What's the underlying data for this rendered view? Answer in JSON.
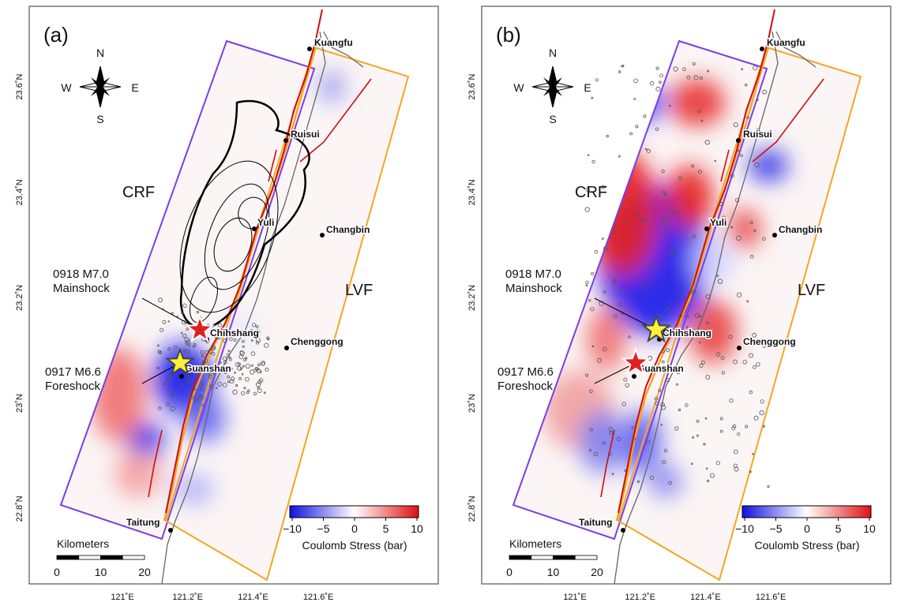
{
  "panels": [
    {
      "label": "(a)",
      "compass": {
        "n": "N",
        "s": "S",
        "w": "W",
        "e": "E"
      },
      "faults": [
        "CRF",
        "LVF"
      ],
      "towns": [
        "Kuangfu",
        "Ruisui",
        "Yuli",
        "Changbin",
        "Chihshang",
        "Chenggong",
        "Guanshan",
        "Taitung"
      ],
      "events": [
        {
          "line1": "0918 M7.0",
          "line2": "Mainshock"
        },
        {
          "line1": "0917 M6.6",
          "line2": "Foreshock"
        }
      ],
      "colorbar": {
        "ticks": [
          "−10",
          "−5",
          "0",
          "5",
          "10"
        ],
        "title": "Coulomb Stress (bar)"
      },
      "scalebar": {
        "title": "Kilometers",
        "ticks": [
          "0",
          "10",
          "20"
        ]
      },
      "lat_labels": [
        "23.6˚N",
        "23.4˚N",
        "23.2˚N",
        "23˚N",
        "22.8˚N"
      ],
      "lon_labels": [
        "121˚E",
        "121.2˚E",
        "121.4˚E",
        "121.6˚E"
      ]
    },
    {
      "label": "(b)",
      "compass": {
        "n": "N",
        "s": "S",
        "w": "W",
        "e": "E"
      },
      "faults": [
        "CRF",
        "LVF"
      ],
      "towns": [
        "Kuangfu",
        "Ruisui",
        "Yuli",
        "Changbin",
        "Chihshang",
        "Chenggong",
        "Guanshan",
        "Taitung"
      ],
      "events": [
        {
          "line1": "0918 M7.0",
          "line2": "Mainshock"
        },
        {
          "line1": "0917 M6.6",
          "line2": "Foreshock"
        }
      ],
      "colorbar": {
        "ticks": [
          "−10",
          "−5",
          "0",
          "5",
          "10"
        ],
        "title": "Coulomb Stress (bar)"
      },
      "scalebar": {
        "title": "Kilometers",
        "ticks": [
          "0",
          "10",
          "20"
        ]
      },
      "lat_labels": [
        "23.6˚N",
        "23.4˚N",
        "23.2˚N",
        "23˚N",
        "22.8˚N"
      ],
      "lon_labels": [
        "121˚E",
        "121.2˚E",
        "121.4˚E",
        "121.6˚E"
      ]
    }
  ]
}
